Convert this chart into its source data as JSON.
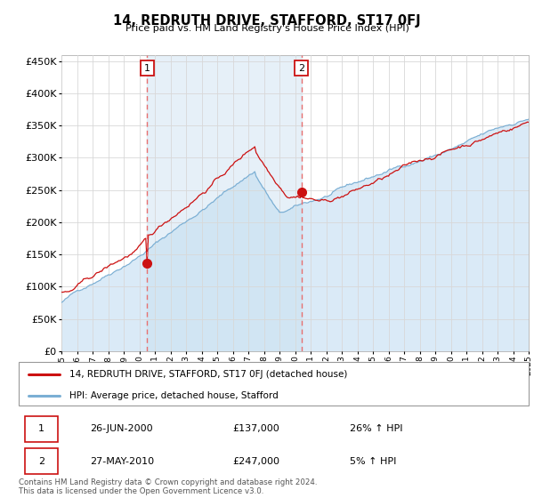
{
  "title": "14, REDRUTH DRIVE, STAFFORD, ST17 0FJ",
  "subtitle": "Price paid vs. HM Land Registry's House Price Index (HPI)",
  "ylim": [
    0,
    460000
  ],
  "yticks": [
    0,
    50000,
    100000,
    150000,
    200000,
    250000,
    300000,
    350000,
    400000,
    450000
  ],
  "background_color": "#ffffff",
  "grid_color": "#d8d8d8",
  "hpi_color": "#7bafd4",
  "hpi_fill_color": "#daeaf7",
  "price_color": "#cc1111",
  "vline_color": "#e87070",
  "shade_color": "#c8dff0",
  "transactions": [
    {
      "label": "1",
      "date": "26-JUN-2000",
      "price": 137000,
      "hpi_pct": "26% ↑ HPI"
    },
    {
      "label": "2",
      "date": "27-MAY-2010",
      "price": 247000,
      "hpi_pct": "5% ↑ HPI"
    }
  ],
  "legend_line1": "14, REDRUTH DRIVE, STAFFORD, ST17 0FJ (detached house)",
  "legend_line2": "HPI: Average price, detached house, Stafford",
  "footnote": "Contains HM Land Registry data © Crown copyright and database right 2024.\nThis data is licensed under the Open Government Licence v3.0.",
  "x_start_year": 1995,
  "x_end_year": 2025,
  "trans1_year": 2000.5,
  "trans2_year": 2010.4,
  "trans1_price": 137000,
  "trans2_price": 247000
}
